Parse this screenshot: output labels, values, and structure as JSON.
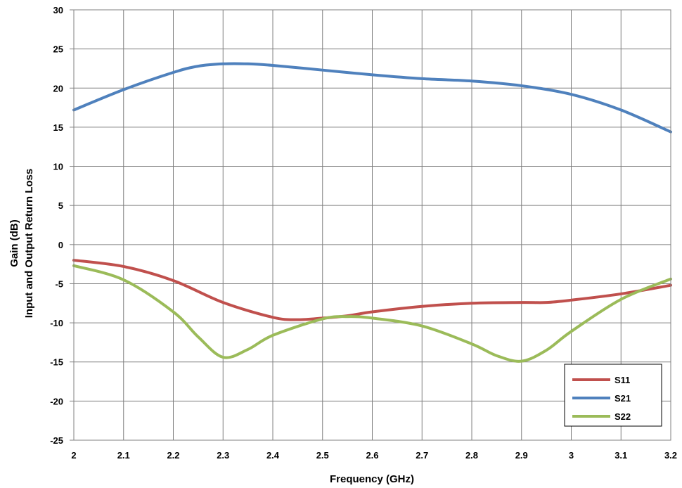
{
  "chart_data": {
    "type": "line",
    "xlabel": "Frequency (GHz)",
    "ylabel_lines": [
      "Gain (dB)",
      "Input and Output Return Loss"
    ],
    "xlim": [
      2,
      3.2
    ],
    "ylim": [
      -25,
      30
    ],
    "x_ticks": [
      "2",
      "2.1",
      "2.2",
      "2.3",
      "2.4",
      "2.5",
      "2.6",
      "2.7",
      "2.8",
      "2.9",
      "3",
      "3.1",
      "3.2"
    ],
    "y_ticks": [
      "30",
      "25",
      "20",
      "15",
      "10",
      "5",
      "0",
      "-5",
      "-10",
      "-15",
      "-20",
      "-25"
    ],
    "grid": true,
    "legend_position": "bottom-right",
    "series": [
      {
        "name": "S11",
        "color": "#c0504d",
        "x": [
          2.0,
          2.1,
          2.2,
          2.3,
          2.4,
          2.45,
          2.5,
          2.55,
          2.6,
          2.7,
          2.8,
          2.9,
          2.95,
          3.0,
          3.1,
          3.2
        ],
        "y": [
          -2.0,
          -2.8,
          -4.6,
          -7.4,
          -9.3,
          -9.6,
          -9.4,
          -9.1,
          -8.6,
          -7.9,
          -7.5,
          -7.4,
          -7.4,
          -7.1,
          -6.3,
          -5.2
        ]
      },
      {
        "name": "S21",
        "color": "#4f81bd",
        "x": [
          2.0,
          2.1,
          2.2,
          2.25,
          2.3,
          2.35,
          2.4,
          2.5,
          2.6,
          2.7,
          2.8,
          2.9,
          3.0,
          3.1,
          3.2
        ],
        "y": [
          17.2,
          19.8,
          22.0,
          22.8,
          23.1,
          23.1,
          22.9,
          22.3,
          21.7,
          21.2,
          20.9,
          20.3,
          19.2,
          17.2,
          14.4
        ]
      },
      {
        "name": "S22",
        "color": "#9bbb59",
        "x": [
          2.0,
          2.1,
          2.2,
          2.25,
          2.3,
          2.35,
          2.4,
          2.5,
          2.55,
          2.6,
          2.7,
          2.8,
          2.85,
          2.9,
          2.95,
          3.0,
          3.1,
          3.2
        ],
        "y": [
          -2.7,
          -4.5,
          -8.6,
          -11.8,
          -14.4,
          -13.4,
          -11.6,
          -9.5,
          -9.2,
          -9.4,
          -10.4,
          -12.7,
          -14.2,
          -14.9,
          -13.5,
          -11.1,
          -7.0,
          -4.4
        ]
      }
    ]
  }
}
